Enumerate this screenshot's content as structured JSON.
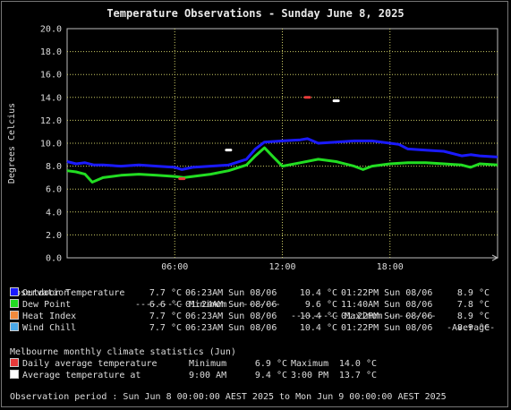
{
  "title": "Temperature Observations - Sunday June 8, 2025",
  "colors": {
    "outdoor": "#1a1aff",
    "dewpoint": "#22dd22",
    "heatindex": "#f08a3c",
    "windchill": "#4aa8e8",
    "daily_avg": "#e83a3a",
    "avg_at": "#ffffff",
    "grid": "#cccc66"
  },
  "chart_data": {
    "type": "line",
    "ylabel": "Degrees Celcius",
    "ylim": [
      0,
      20
    ],
    "yticks": [
      "0.0",
      "2.0",
      "4.0",
      "6.0",
      "8.0",
      "10.0",
      "12.0",
      "14.0",
      "16.0",
      "18.0",
      "20.0"
    ],
    "xlim_hours": [
      0,
      24
    ],
    "xticks": [
      {
        "hour": 6,
        "label": "06:00"
      },
      {
        "hour": 12,
        "label": "12:00"
      },
      {
        "hour": 18,
        "label": "18:00"
      }
    ],
    "grid": true,
    "series": [
      {
        "name": "Outdoor Temperature",
        "color": "#1a1aff",
        "points": [
          [
            0,
            8.4
          ],
          [
            0.5,
            8.2
          ],
          [
            1,
            8.3
          ],
          [
            1.5,
            8.1
          ],
          [
            2,
            8.1
          ],
          [
            3,
            8.0
          ],
          [
            4,
            8.1
          ],
          [
            5,
            8.0
          ],
          [
            6,
            7.9
          ],
          [
            6.4,
            7.7
          ],
          [
            7,
            7.9
          ],
          [
            8,
            8.0
          ],
          [
            9,
            8.1
          ],
          [
            10,
            8.6
          ],
          [
            10.5,
            9.5
          ],
          [
            11,
            10.1
          ],
          [
            12,
            10.2
          ],
          [
            13,
            10.3
          ],
          [
            13.4,
            10.4
          ],
          [
            14,
            10.0
          ],
          [
            15,
            10.1
          ],
          [
            16,
            10.2
          ],
          [
            17,
            10.2
          ],
          [
            18,
            10.0
          ],
          [
            18.5,
            9.9
          ],
          [
            19,
            9.5
          ],
          [
            20,
            9.4
          ],
          [
            21,
            9.3
          ],
          [
            22,
            8.9
          ],
          [
            22.5,
            9.0
          ],
          [
            23,
            8.9
          ],
          [
            24,
            8.8
          ]
        ]
      },
      {
        "name": "Dew Point",
        "color": "#22dd22",
        "points": [
          [
            0,
            7.6
          ],
          [
            0.5,
            7.5
          ],
          [
            1,
            7.3
          ],
          [
            1.4,
            6.6
          ],
          [
            2,
            7.0
          ],
          [
            3,
            7.2
          ],
          [
            4,
            7.3
          ],
          [
            5,
            7.2
          ],
          [
            6,
            7.1
          ],
          [
            6.5,
            7.0
          ],
          [
            7,
            7.1
          ],
          [
            8,
            7.3
          ],
          [
            9,
            7.6
          ],
          [
            10,
            8.1
          ],
          [
            10.5,
            8.9
          ],
          [
            11,
            9.6
          ],
          [
            11.5,
            8.8
          ],
          [
            12,
            8.0
          ],
          [
            13,
            8.3
          ],
          [
            14,
            8.6
          ],
          [
            15,
            8.4
          ],
          [
            16,
            8.0
          ],
          [
            16.5,
            7.7
          ],
          [
            17,
            8.0
          ],
          [
            18,
            8.2
          ],
          [
            19,
            8.3
          ],
          [
            20,
            8.3
          ],
          [
            21,
            8.2
          ],
          [
            22,
            8.1
          ],
          [
            22.5,
            7.9
          ],
          [
            23,
            8.2
          ],
          [
            24,
            8.1
          ]
        ]
      }
    ],
    "markers": [
      {
        "name": "Daily average temperature",
        "color": "#e83a3a",
        "points": [
          [
            6.4,
            6.9
          ],
          [
            13.4,
            14.0
          ]
        ]
      },
      {
        "name": "Average temperature at",
        "color": "#ffffff",
        "points": [
          [
            9,
            9.4
          ],
          [
            15,
            13.7
          ]
        ]
      }
    ]
  },
  "legend": {
    "header": {
      "observation": "Observation",
      "minimum": "--------- Minimum ---------",
      "maximum": "--------- Maximum ---------",
      "average": "-Average-"
    },
    "rows": [
      {
        "color_key": "outdoor",
        "name": "Outdoor Temperature",
        "min_val": "7.7 °C",
        "min_time": "06:23AM Sun 08/06",
        "max_val": "10.4 °C",
        "max_time": "01:22PM Sun 08/06",
        "avg": "8.9 °C"
      },
      {
        "color_key": "dewpoint",
        "name": "Dew Point",
        "min_val": "6.6 °C",
        "min_time": "01:24AM Sun 08/06",
        "max_val": "9.6 °C",
        "max_time": "11:40AM Sun 08/06",
        "avg": "7.8 °C"
      },
      {
        "color_key": "heatindex",
        "name": "Heat Index",
        "min_val": "7.7 °C",
        "min_time": "06:23AM Sun 08/06",
        "max_val": "10.4 °C",
        "max_time": "01:22PM Sun 08/06",
        "avg": "8.9 °C"
      },
      {
        "color_key": "windchill",
        "name": "Wind Chill",
        "min_val": "7.7 °C",
        "min_time": "06:23AM Sun 08/06",
        "max_val": "10.4 °C",
        "max_time": "01:22PM Sun 08/06",
        "avg": "8.9 °C"
      }
    ]
  },
  "climate": {
    "header": "Melbourne monthly climate statistics (Jun)",
    "rows": [
      {
        "color_key": "daily_avg",
        "label": "Daily average temperature",
        "c1": "Minimum",
        "c2": "6.9 °C",
        "c3": "Maximum",
        "c4": "14.0 °C"
      },
      {
        "color_key": "avg_at",
        "label": "Average temperature at",
        "c1": "9:00 AM",
        "c2": "9.4 °C",
        "c3": "3:00 PM",
        "c4": "13.7 °C"
      }
    ]
  },
  "period": "Observation period : Sun Jun 8 00:00:00 AEST 2025 to Mon Jun 9 00:00:00 AEST 2025"
}
